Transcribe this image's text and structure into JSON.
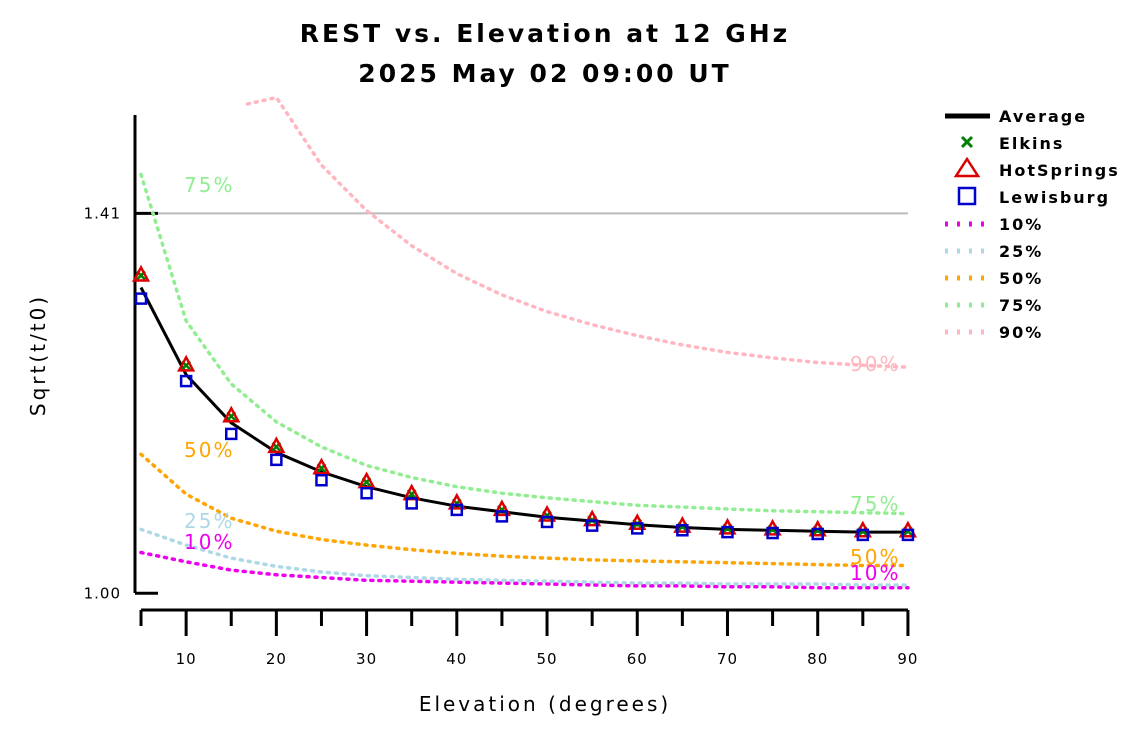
{
  "chart_data": {
    "type": "line",
    "title": "REST vs. Elevation at 12 GHz",
    "subtitle": "2025 May 02 09:00 UT",
    "xlabel": "Elevation (degrees)",
    "ylabel": "Sqrt(t/t0)",
    "xlim": [
      4,
      93
    ],
    "ylim": [
      0.996,
      1.528
    ],
    "x_ticks": [
      10,
      20,
      30,
      40,
      50,
      60,
      70,
      80,
      90
    ],
    "x_minor_ticks": [
      5,
      15,
      25,
      35,
      45,
      55,
      65,
      75,
      85
    ],
    "y_ticks": [
      1.0,
      1.41
    ],
    "y_tick_labels": [
      "1.00",
      "1.41"
    ],
    "reference_line": {
      "y": 1.41,
      "color": "#bbbbbb"
    },
    "legend_position": "right",
    "x": [
      5,
      10,
      15,
      20,
      25,
      30,
      35,
      40,
      45,
      50,
      55,
      60,
      65,
      70,
      75,
      80,
      85,
      90
    ],
    "series": [
      {
        "name": "Average",
        "style": "solid",
        "color": "#000000",
        "values": [
          1.33,
          1.236,
          1.184,
          1.152,
          1.131,
          1.115,
          1.103,
          1.094,
          1.088,
          1.082,
          1.078,
          1.074,
          1.071,
          1.069,
          1.068,
          1.067,
          1.066,
          1.066
        ]
      },
      {
        "name": "Elkins",
        "style": "marker",
        "marker": "x",
        "color": "#008000",
        "values": [
          1.343,
          1.246,
          1.191,
          1.158,
          1.135,
          1.12,
          1.107,
          1.097,
          1.09,
          1.084,
          1.079,
          1.075,
          1.072,
          1.07,
          1.069,
          1.068,
          1.067,
          1.067
        ]
      },
      {
        "name": "HotSprings",
        "style": "marker",
        "marker": "triangle",
        "color": "#dd0000",
        "values": [
          1.343,
          1.246,
          1.191,
          1.158,
          1.135,
          1.12,
          1.107,
          1.097,
          1.09,
          1.084,
          1.079,
          1.075,
          1.072,
          1.07,
          1.069,
          1.068,
          1.067,
          1.067
        ]
      },
      {
        "name": "Lewisburg",
        "style": "marker",
        "marker": "square",
        "color": "#0000cc",
        "values": [
          1.318,
          1.229,
          1.172,
          1.144,
          1.122,
          1.108,
          1.097,
          1.09,
          1.083,
          1.077,
          1.073,
          1.07,
          1.068,
          1.066,
          1.065,
          1.064,
          1.063,
          1.063
        ]
      },
      {
        "name": "10%",
        "style": "dotted",
        "color": "#ee00ee",
        "values": [
          1.044,
          1.034,
          1.025,
          1.02,
          1.017,
          1.014,
          1.013,
          1.012,
          1.011,
          1.01,
          1.009,
          1.008,
          1.008,
          1.007,
          1.007,
          1.006,
          1.006,
          1.006
        ]
      },
      {
        "name": "25%",
        "style": "dotted",
        "color": "#add8e6",
        "values": [
          1.069,
          1.052,
          1.038,
          1.029,
          1.023,
          1.019,
          1.017,
          1.015,
          1.014,
          1.013,
          1.012,
          1.011,
          1.011,
          1.01,
          1.01,
          1.01,
          1.009,
          1.009
        ]
      },
      {
        "name": "50%",
        "style": "dotted",
        "color": "#ffa500",
        "values": [
          1.15,
          1.107,
          1.081,
          1.067,
          1.058,
          1.052,
          1.047,
          1.043,
          1.04,
          1.038,
          1.036,
          1.035,
          1.034,
          1.033,
          1.032,
          1.031,
          1.03,
          1.03
        ]
      },
      {
        "name": "75%",
        "style": "dotted",
        "color": "#90ee90",
        "values": [
          1.452,
          1.294,
          1.226,
          1.185,
          1.158,
          1.138,
          1.125,
          1.115,
          1.108,
          1.103,
          1.099,
          1.095,
          1.093,
          1.091,
          1.089,
          1.088,
          1.087,
          1.086
        ]
      },
      {
        "name": "90%",
        "style": "dotted",
        "color": "#ffb6c1",
        "values": [
          null,
          null,
          null,
          1.535,
          1.462,
          1.413,
          1.375,
          1.345,
          1.322,
          1.304,
          1.29,
          1.278,
          1.268,
          1.26,
          1.254,
          1.249,
          1.246,
          1.244
        ]
      }
    ],
    "curve_labels": [
      {
        "text": "75%",
        "color": "#90ee90"
      },
      {
        "text": "50%",
        "color": "#ffa500"
      },
      {
        "text": "25%",
        "color": "#add8e6"
      },
      {
        "text": "10%",
        "color": "#ee00ee"
      },
      {
        "text": "90%",
        "color": "#ffb6c1"
      },
      {
        "text": "75%",
        "color": "#90ee90"
      },
      {
        "text": "50%",
        "color": "#ffa500"
      },
      {
        "text": "10%",
        "color": "#ee00ee"
      }
    ]
  }
}
